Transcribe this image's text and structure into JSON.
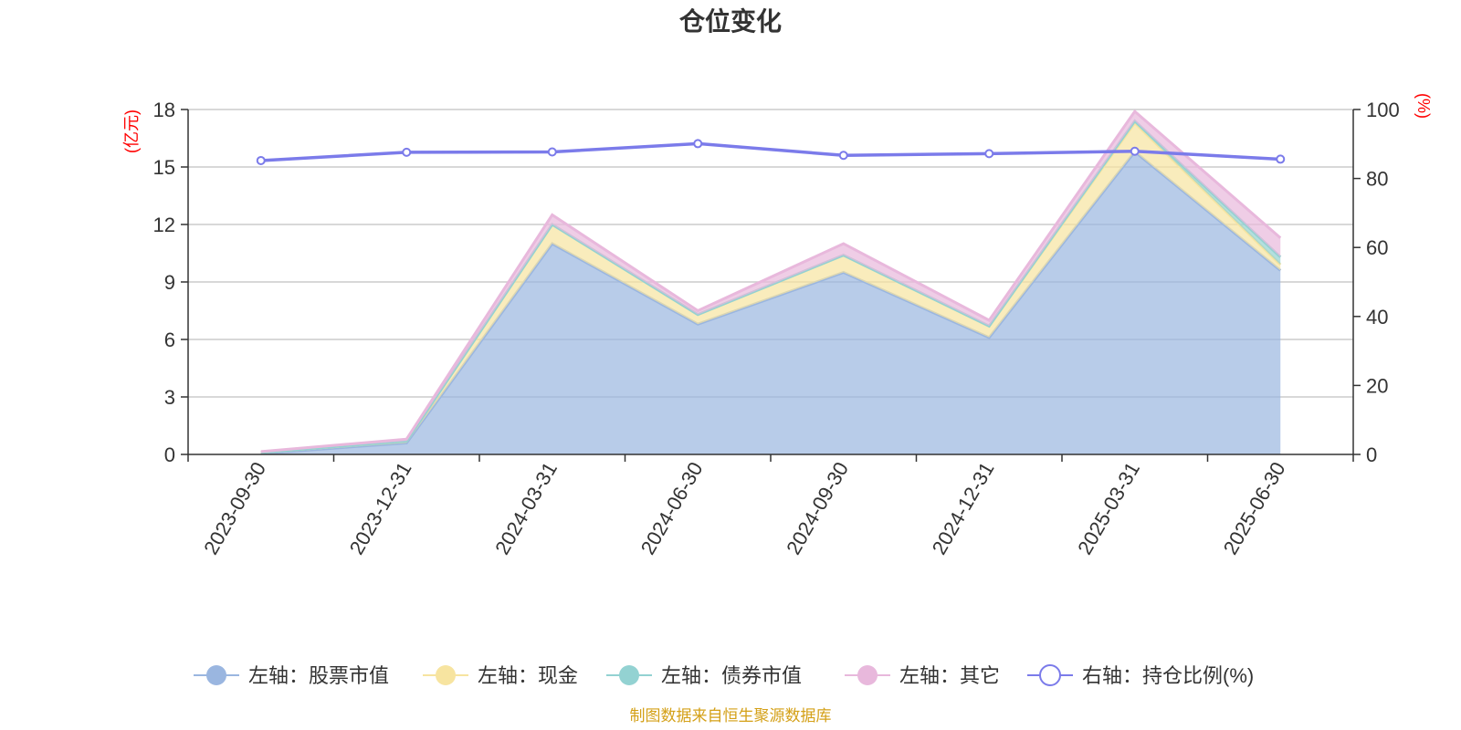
{
  "chart_data": {
    "type": "area",
    "title": "仓位变化",
    "left_unit": "(亿元)",
    "right_unit": "(%)",
    "categories": [
      "2023-09-30",
      "2023-12-31",
      "2024-03-31",
      "2024-06-30",
      "2024-09-30",
      "2024-12-31",
      "2025-03-31",
      "2025-06-30"
    ],
    "left_ylim": [
      0,
      18
    ],
    "left_ticks": [
      "0",
      "3",
      "6",
      "9",
      "12",
      "15",
      "18"
    ],
    "right_ylim": [
      0,
      100
    ],
    "right_ticks": [
      "0",
      "20",
      "40",
      "60",
      "80",
      "100"
    ],
    "stacked": true,
    "series": [
      {
        "name": "左轴：股票市值",
        "axis": "left",
        "color": "#9ab6e0",
        "values": [
          0.05,
          0.6,
          11.0,
          6.8,
          9.5,
          6.1,
          15.8,
          9.6
        ]
      },
      {
        "name": "左轴：现金",
        "axis": "left",
        "color": "#f7e4a0",
        "values": [
          0.05,
          0.1,
          1.0,
          0.5,
          0.9,
          0.6,
          1.5,
          0.3
        ]
      },
      {
        "name": "左轴：债券市值",
        "axis": "left",
        "color": "#93d2d2",
        "values": [
          0,
          0,
          0,
          0,
          0,
          0,
          0.1,
          0.4
        ]
      },
      {
        "name": "左轴：其它",
        "axis": "left",
        "color": "#e8b8dc",
        "values": [
          0.05,
          0.1,
          0.5,
          0.2,
          0.6,
          0.3,
          0.5,
          1.0
        ]
      },
      {
        "name": "右轴：持仓比例(%)",
        "axis": "right",
        "type": "line",
        "color": "#7b7bea",
        "values": [
          85.2,
          87.6,
          87.7,
          90.1,
          86.7,
          87.2,
          87.9,
          85.6
        ]
      }
    ],
    "legend_position": "bottom",
    "grid": true
  },
  "source_text": "制图数据来自恒生聚源数据库"
}
